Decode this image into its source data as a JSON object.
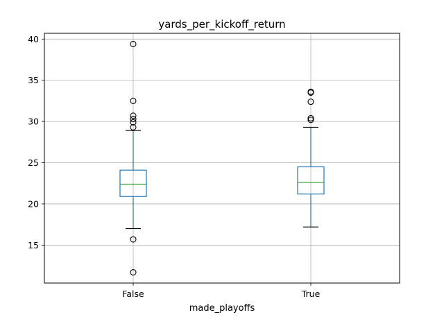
{
  "chart_data": {
    "type": "box",
    "title": "yards_per_kickoff_return",
    "xlabel": "made_playoffs",
    "ylabel": "",
    "categories": [
      "False",
      "True"
    ],
    "ylim": [
      10.4,
      40.7
    ],
    "yticks": [
      15,
      20,
      25,
      30,
      35,
      40
    ],
    "grid": true,
    "colors": {
      "box": "#1f77b4",
      "median": "#2ca02c",
      "cap": "#000000",
      "flier": "#000000",
      "grid": "#b0b0b0"
    },
    "boxes": [
      {
        "label": "False",
        "whisker_low": 17.0,
        "q1": 20.9,
        "median": 22.4,
        "q3": 24.1,
        "whisker_high": 28.9,
        "fliers": [
          39.4,
          32.5,
          30.7,
          30.3,
          29.9,
          29.3,
          15.7,
          11.7
        ]
      },
      {
        "label": "True",
        "whisker_low": 17.2,
        "q1": 21.2,
        "median": 22.6,
        "q3": 24.5,
        "whisker_high": 29.3,
        "fliers": [
          33.6,
          33.5,
          32.4,
          30.4,
          30.2
        ]
      }
    ]
  }
}
